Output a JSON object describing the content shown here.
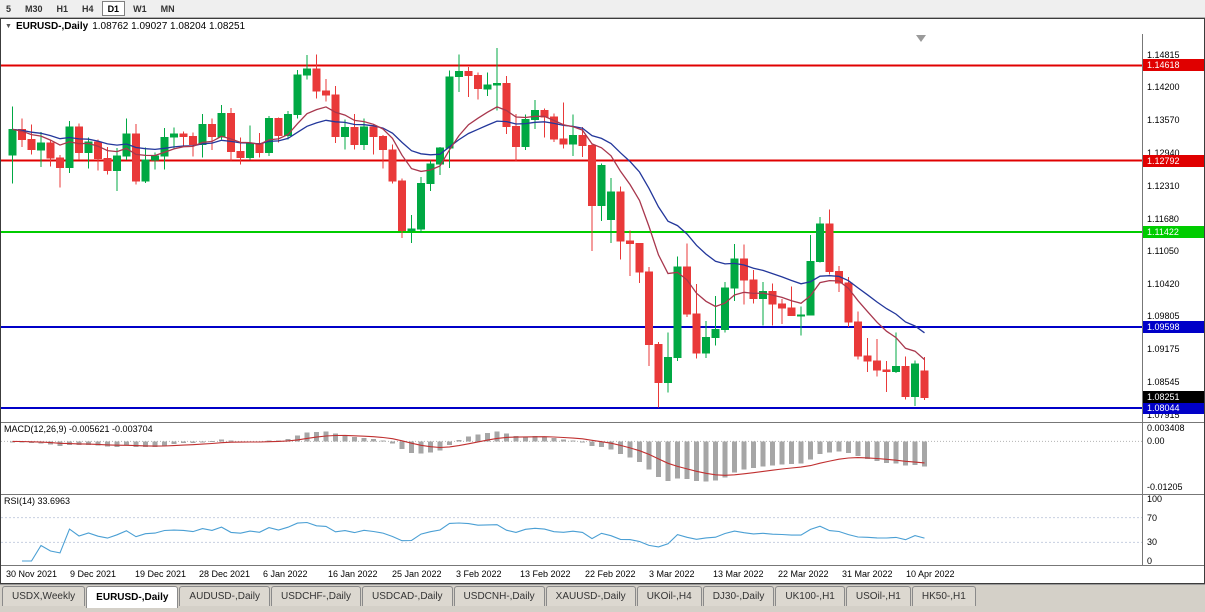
{
  "toolbar": {
    "timeframes": [
      {
        "label": "5",
        "active": false
      },
      {
        "label": "M30",
        "active": false
      },
      {
        "label": "H1",
        "active": false
      },
      {
        "label": "H4",
        "active": false
      },
      {
        "label": "D1",
        "active": true
      },
      {
        "label": "W1",
        "active": false
      },
      {
        "label": "MN",
        "active": false
      }
    ]
  },
  "chart": {
    "type": "candlestick",
    "title_symbol": "EURUSD-,Daily",
    "title_ohlc": "1.08762 1.09027 1.08204 1.08251",
    "price_scale_labels": [
      "1.14815",
      "1.14200",
      "1.13570",
      "1.12940",
      "1.12310",
      "1.11680",
      "1.11050",
      "1.10420",
      "1.09805",
      "1.09175",
      "1.08545",
      "1.07915"
    ],
    "levels": [
      {
        "price": 1.14618,
        "label": "1.14618",
        "color": "#e00000"
      },
      {
        "price": 1.12792,
        "label": "1.12792",
        "color": "#e00000"
      },
      {
        "price": 1.11422,
        "label": "1.11422",
        "color": "#00cc00"
      },
      {
        "price": 1.09598,
        "label": "1.09598",
        "color": "#0000c8"
      },
      {
        "price": 1.08044,
        "label": "1.08044",
        "color": "#0000c8"
      }
    ],
    "current_price": {
      "price": 1.08251,
      "label": "1.08251",
      "color": "#000000"
    },
    "colors": {
      "bull": "#00a843",
      "bear": "#e93939",
      "ma_slow": "#23379b",
      "ma_fast": "#a8374d",
      "macd_hist": "#a6a6a6",
      "macd_signal": "#c03030",
      "rsi_line": "#4a9fd4"
    },
    "date_labels": [
      "30 Nov 2021",
      "9 Dec 2021",
      "19 Dec 2021",
      "28 Dec 2021",
      "6 Jan 2022",
      "16 Jan 2022",
      "25 Jan 2022",
      "3 Feb 2022",
      "13 Feb 2022",
      "22 Feb 2022",
      "3 Mar 2022",
      "13 Mar 2022",
      "22 Mar 2022",
      "31 Mar 2022",
      "10 Apr 2022"
    ],
    "candles": [
      [
        1.129,
        1.1383,
        1.1235,
        1.1339
      ],
      [
        1.1339,
        1.136,
        1.1305,
        1.132
      ],
      [
        1.132,
        1.1348,
        1.1291,
        1.13
      ],
      [
        1.13,
        1.1334,
        1.1267,
        1.1313
      ],
      [
        1.1313,
        1.132,
        1.1268,
        1.1284
      ],
      [
        1.1284,
        1.129,
        1.1228,
        1.1266
      ],
      [
        1.1266,
        1.1355,
        1.1255,
        1.1344
      ],
      [
        1.1344,
        1.135,
        1.128,
        1.1295
      ],
      [
        1.1295,
        1.1324,
        1.1264,
        1.1315
      ],
      [
        1.1315,
        1.132,
        1.126,
        1.1283
      ],
      [
        1.1283,
        1.1305,
        1.1253,
        1.126
      ],
      [
        1.126,
        1.1303,
        1.1221,
        1.1288
      ],
      [
        1.1288,
        1.136,
        1.128,
        1.133
      ],
      [
        1.133,
        1.1349,
        1.1233,
        1.124
      ],
      [
        1.124,
        1.1304,
        1.1236,
        1.128
      ],
      [
        1.128,
        1.1295,
        1.1262,
        1.1288
      ],
      [
        1.1288,
        1.1342,
        1.1262,
        1.1324
      ],
      [
        1.1324,
        1.1343,
        1.1301,
        1.133
      ],
      [
        1.133,
        1.1335,
        1.1305,
        1.1325
      ],
      [
        1.1325,
        1.1333,
        1.1287,
        1.131
      ],
      [
        1.131,
        1.1369,
        1.1285,
        1.1348
      ],
      [
        1.1348,
        1.136,
        1.13,
        1.1325
      ],
      [
        1.1325,
        1.1386,
        1.132,
        1.137
      ],
      [
        1.137,
        1.138,
        1.1279,
        1.1297
      ],
      [
        1.1297,
        1.1324,
        1.1272,
        1.1285
      ],
      [
        1.1285,
        1.1347,
        1.128,
        1.1312
      ],
      [
        1.1312,
        1.1332,
        1.1285,
        1.1295
      ],
      [
        1.1295,
        1.1365,
        1.1288,
        1.136
      ],
      [
        1.136,
        1.1362,
        1.1314,
        1.1327
      ],
      [
        1.1327,
        1.1374,
        1.132,
        1.1368
      ],
      [
        1.1368,
        1.1453,
        1.136,
        1.1443
      ],
      [
        1.1443,
        1.1482,
        1.1435,
        1.1455
      ],
      [
        1.1455,
        1.1483,
        1.1398,
        1.1413
      ],
      [
        1.1413,
        1.1436,
        1.1393,
        1.1405
      ],
      [
        1.1405,
        1.1422,
        1.1313,
        1.1325
      ],
      [
        1.1325,
        1.1358,
        1.1301,
        1.1343
      ],
      [
        1.1343,
        1.1369,
        1.1301,
        1.131
      ],
      [
        1.131,
        1.136,
        1.13,
        1.1344
      ],
      [
        1.1344,
        1.1349,
        1.1291,
        1.1325
      ],
      [
        1.1325,
        1.1328,
        1.1264,
        1.13
      ],
      [
        1.13,
        1.131,
        1.1235,
        1.124
      ],
      [
        1.124,
        1.1245,
        1.1131,
        1.1145
      ],
      [
        1.1145,
        1.1175,
        1.1121,
        1.1148
      ],
      [
        1.1148,
        1.1248,
        1.114,
        1.1235
      ],
      [
        1.1235,
        1.1279,
        1.1221,
        1.1273
      ],
      [
        1.1273,
        1.1305,
        1.1252,
        1.1303
      ],
      [
        1.1303,
        1.1452,
        1.1265,
        1.144
      ],
      [
        1.144,
        1.1483,
        1.1411,
        1.145
      ],
      [
        1.145,
        1.1459,
        1.1401,
        1.1442
      ],
      [
        1.1442,
        1.1448,
        1.1396,
        1.1417
      ],
      [
        1.1417,
        1.1448,
        1.1403,
        1.1424
      ],
      [
        1.1424,
        1.1495,
        1.1375,
        1.1427
      ],
      [
        1.1427,
        1.1441,
        1.133,
        1.1345
      ],
      [
        1.1345,
        1.1369,
        1.1278,
        1.1306
      ],
      [
        1.1306,
        1.1368,
        1.13,
        1.1358
      ],
      [
        1.1358,
        1.1395,
        1.134,
        1.1375
      ],
      [
        1.1375,
        1.1379,
        1.1324,
        1.1363
      ],
      [
        1.1363,
        1.137,
        1.1315,
        1.1321
      ],
      [
        1.1321,
        1.1391,
        1.1302,
        1.1311
      ],
      [
        1.1311,
        1.1368,
        1.1288,
        1.1327
      ],
      [
        1.1327,
        1.1344,
        1.1286,
        1.1308
      ],
      [
        1.1308,
        1.131,
        1.1106,
        1.1193
      ],
      [
        1.1193,
        1.1274,
        1.1163,
        1.127
      ],
      [
        1.1166,
        1.1246,
        1.1121,
        1.1219
      ],
      [
        1.1219,
        1.123,
        1.109,
        1.1125
      ],
      [
        1.1125,
        1.1145,
        1.1058,
        1.112
      ],
      [
        1.112,
        1.1121,
        1.1045,
        1.1066
      ],
      [
        1.1066,
        1.1075,
        1.0885,
        1.0927
      ],
      [
        1.0927,
        1.0931,
        1.0806,
        1.0854
      ],
      [
        1.0854,
        1.095,
        1.0835,
        1.0902
      ],
      [
        1.0902,
        1.1095,
        1.0895,
        1.1075
      ],
      [
        1.1075,
        1.112,
        1.0979,
        1.0985
      ],
      [
        1.0985,
        1.1043,
        1.09,
        1.091
      ],
      [
        1.091,
        1.0972,
        1.0901,
        1.094
      ],
      [
        1.094,
        1.102,
        1.0925,
        1.0955
      ],
      [
        1.0955,
        1.1046,
        1.095,
        1.1035
      ],
      [
        1.1035,
        1.1119,
        1.101,
        1.1091
      ],
      [
        1.1091,
        1.1118,
        1.1003,
        1.105
      ],
      [
        1.105,
        1.1069,
        1.1005,
        1.1015
      ],
      [
        1.1015,
        1.1046,
        1.0963,
        1.1028
      ],
      [
        1.1028,
        1.1044,
        1.0963,
        1.1004
      ],
      [
        1.1004,
        1.1014,
        1.0966,
        1.0997
      ],
      [
        1.0997,
        1.1038,
        1.0981,
        1.0982
      ],
      [
        1.0982,
        1.0999,
        1.0944,
        1.0983
      ],
      [
        1.0983,
        1.1137,
        1.0982,
        1.1086
      ],
      [
        1.1086,
        1.1171,
        1.1084,
        1.1158
      ],
      [
        1.1158,
        1.1185,
        1.1061,
        1.1067
      ],
      [
        1.1067,
        1.1077,
        1.1027,
        1.1045
      ],
      [
        1.1045,
        1.1056,
        1.096,
        1.097
      ],
      [
        1.097,
        1.099,
        1.0898,
        1.0905
      ],
      [
        1.0905,
        1.0939,
        1.0874,
        1.0895
      ],
      [
        1.0895,
        1.0937,
        1.0865,
        1.0878
      ],
      [
        1.0878,
        1.0895,
        1.0836,
        1.0875
      ],
      [
        1.0875,
        1.095,
        1.0872,
        1.0884
      ],
      [
        1.0884,
        1.0904,
        1.0821,
        1.0827
      ],
      [
        1.0827,
        1.0896,
        1.0809,
        1.0889
      ],
      [
        1.08762,
        1.09027,
        1.08204,
        1.08251
      ]
    ]
  },
  "macd": {
    "label": "MACD(12,26,9) -0.005621 -0.003704",
    "scale_labels": [
      {
        "label": "0.003408",
        "value": 0.003408
      },
      {
        "label": "0.00",
        "value": 0
      },
      {
        "label": "-0.01205",
        "value": -0.01205
      }
    ]
  },
  "rsi": {
    "label": "RSI(14) 33.6963",
    "scale_labels": [
      {
        "label": "100",
        "value": 100
      },
      {
        "label": "70",
        "value": 70
      },
      {
        "label": "30",
        "value": 30
      },
      {
        "label": "0",
        "value": 0
      }
    ]
  },
  "tabs": [
    {
      "label": "USDX,Weekly",
      "active": false
    },
    {
      "label": "EURUSD-,Daily",
      "active": true
    },
    {
      "label": "AUDUSD-,Daily",
      "active": false
    },
    {
      "label": "USDCHF-,Daily",
      "active": false
    },
    {
      "label": "USDCAD-,Daily",
      "active": false
    },
    {
      "label": "USDCNH-,Daily",
      "active": false
    },
    {
      "label": "XAUUSD-,Daily",
      "active": false
    },
    {
      "label": "UKOil-,H4",
      "active": false
    },
    {
      "label": "DJ30-,Daily",
      "active": false
    },
    {
      "label": "UK100-,H1",
      "active": false
    },
    {
      "label": "USOil-,H1",
      "active": false
    },
    {
      "label": "HK50-,H1",
      "active": false
    }
  ]
}
